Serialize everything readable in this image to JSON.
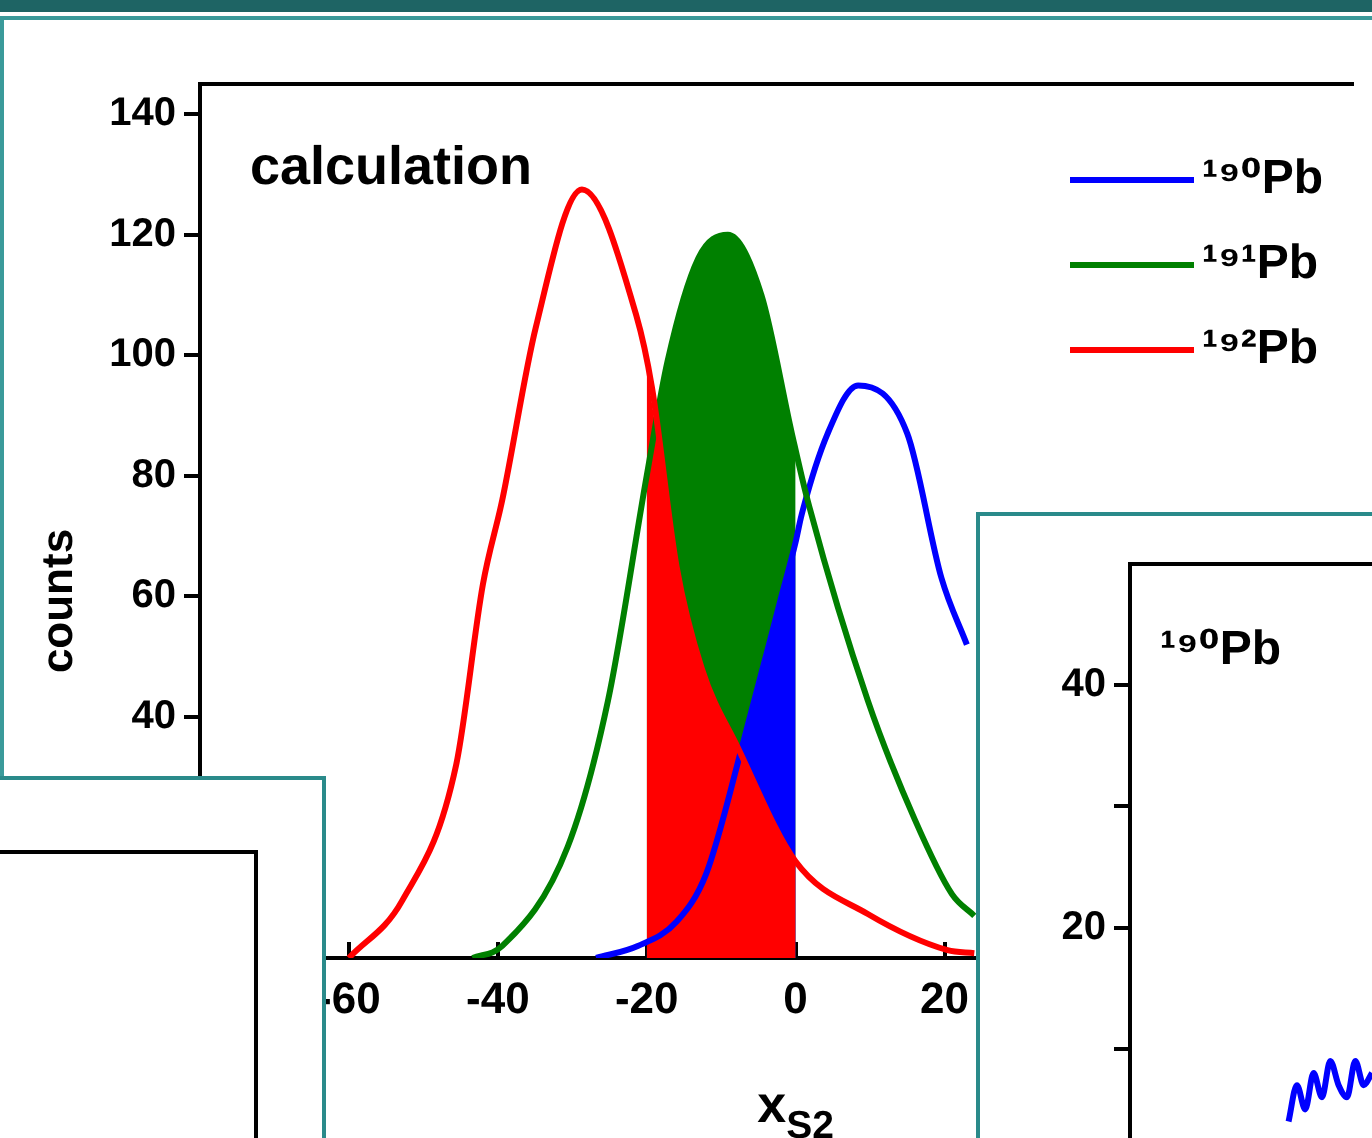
{
  "chart_data": [
    {
      "type": "line",
      "title": "calculation",
      "xlabel": "x$_{S2}$",
      "ylabel": "counts",
      "xlim": [
        -80,
        75
      ],
      "xticks": [
        -60,
        -40,
        -20,
        0,
        20
      ],
      "ylim": [
        0,
        145
      ],
      "yticks": [
        40,
        60,
        80,
        100,
        120,
        140
      ],
      "grid": false,
      "legend": "top right",
      "marker": "none",
      "line_style": "solid",
      "series": [
        {
          "type": "area",
          "color": "#008000",
          "x": [
            -20,
            -17.2,
            -13.1,
            -9.1,
            -4.6,
            -0.5,
            0
          ],
          "values": [
            80,
            99,
            116,
            120,
            110,
            87,
            85
          ]
        },
        {
          "type": "area",
          "color": "#0000ff",
          "x": [
            -20,
            -7.2,
            -1.9,
            0
          ],
          "values": [
            2,
            35,
            60,
            69
          ]
        },
        {
          "type": "area",
          "color": "#ff0000",
          "x": [
            -20,
            -16,
            -12.6,
            -7.8,
            0
          ],
          "values": [
            98,
            65,
            48,
            35,
            16
          ]
        },
        {
          "name": "¹⁹⁰Pb",
          "color": "#0000ff",
          "x": [
            -26.8,
            -21.2,
            -16,
            -12,
            -7.2,
            -1.9,
            0,
            0.8,
            4.3,
            8.4,
            15,
            19.6,
            23
          ],
          "values": [
            0,
            2,
            6,
            14,
            35,
            60,
            69,
            73.5,
            87,
            95,
            87,
            63,
            52
          ]
        },
        {
          "name": "¹⁹¹Pb",
          "color": "#008000",
          "x": [
            -43.4,
            -39.4,
            -30.6,
            -25.2,
            -20,
            -17.2,
            -13.1,
            -9.1,
            -4.6,
            -0.5,
            1.6,
            9.7,
            16,
            21,
            24
          ],
          "values": [
            0,
            2,
            18.5,
            42.7,
            80,
            99,
            116,
            120,
            110,
            87,
            76,
            42.7,
            23,
            10.6,
            7
          ]
        },
        {
          "name": "¹⁹²Pb",
          "color": "#ff0000",
          "x": [
            -60,
            -52.8,
            -45.6,
            -42,
            -39.4,
            -34.9,
            -28.7,
            -21.4,
            -19.3,
            -16,
            -12.6,
            -7.8,
            0,
            9.7,
            20.4,
            24
          ],
          "values": [
            0,
            9.6,
            32,
            62,
            76,
            104.6,
            127.5,
            106.6,
            94.7,
            65,
            48,
            35,
            16,
            7.3,
            1.3,
            0.8
          ]
        }
      ]
    },
    {
      "type": "line",
      "annotations": [
        "¹⁹⁰Pb"
      ],
      "ylim": [
        0,
        50
      ],
      "yticks": [
        {
          "value": 10,
          "label": null
        },
        20,
        {
          "value": 30,
          "label": null
        },
        40
      ],
      "tick_labels": "y",
      "grid": false,
      "marker": "none",
      "categories": [
        null,
        null,
        null,
        null,
        null,
        null,
        null,
        null,
        null,
        null,
        null,
        null,
        null,
        null,
        null,
        null,
        null,
        null,
        null,
        null,
        null,
        null,
        null,
        null,
        null,
        null,
        null,
        null,
        null,
        null
      ],
      "series": [
        {
          "color": "#0000ff",
          "values": [
            null,
            null,
            null,
            null,
            null,
            null,
            null,
            null,
            null,
            null,
            null,
            null,
            null,
            null,
            null,
            null,
            null,
            null,
            null,
            4,
            7,
            5,
            8,
            6,
            9,
            7,
            6,
            9,
            7,
            8
          ]
        }
      ]
    }
  ]
}
